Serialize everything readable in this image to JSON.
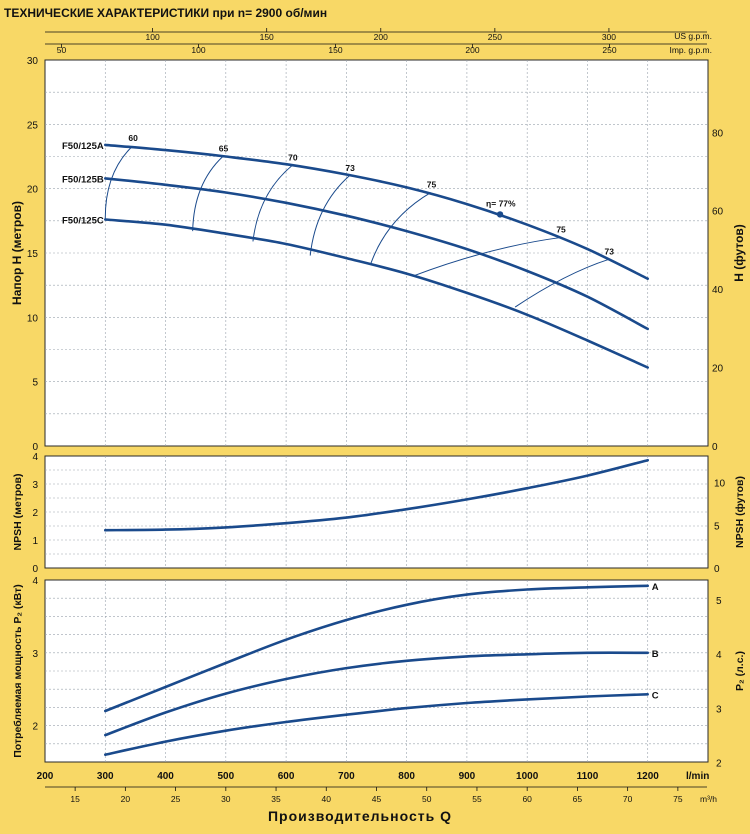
{
  "title": "ТЕХНИЧЕСКИЕ ХАРАКТЕРИСТИКИ при n= 2900 об/мин",
  "top_axes": {
    "us_gpm": {
      "unit": "US g.p.m.",
      "ticks": [
        100,
        150,
        200,
        250,
        300
      ]
    },
    "imp_gpm": {
      "unit": "Imp. g.p.m.",
      "ticks": [
        50,
        100,
        150,
        200,
        250
      ]
    }
  },
  "bottom_axes": {
    "lmin": {
      "unit": "l/min",
      "ticks": [
        200,
        300,
        400,
        500,
        600,
        700,
        800,
        900,
        1000,
        1100,
        1200
      ]
    },
    "m3h": {
      "unit": "m³/h",
      "ticks": [
        15,
        20,
        25,
        30,
        35,
        40,
        45,
        50,
        55,
        60,
        65,
        70,
        75
      ]
    },
    "xlabel": "Производительность  Q"
  },
  "colors": {
    "background": "#f8d866",
    "curve": "#1a4a8c",
    "grid": "#9aa3ad"
  },
  "chart_data": [
    {
      "type": "line",
      "name_panel": "head",
      "xlabel": "Производительность Q (l/min)",
      "ylabel_left": "Напор  H   (метров)",
      "ylabel_right": "H    (футов)",
      "xlim": [
        200,
        1300
      ],
      "ylim": [
        0,
        30
      ],
      "yticks_left": [
        0,
        5,
        10,
        15,
        20,
        25,
        30
      ],
      "yticks_right": [
        0,
        20,
        40,
        60,
        80
      ],
      "grid": true,
      "series": [
        {
          "name": "F50/125A",
          "x": [
            300,
            400,
            500,
            600,
            700,
            800,
            900,
            1000,
            1100,
            1200
          ],
          "y": [
            23.4,
            23.0,
            22.5,
            21.9,
            21.1,
            20.1,
            18.8,
            17.2,
            15.3,
            13.0
          ]
        },
        {
          "name": "F50/125B",
          "x": [
            300,
            400,
            500,
            600,
            700,
            800,
            900,
            1000,
            1100,
            1200
          ],
          "y": [
            20.8,
            20.3,
            19.7,
            18.9,
            17.9,
            16.7,
            15.3,
            13.6,
            11.6,
            9.1
          ]
        },
        {
          "name": "F50/125C",
          "x": [
            300,
            400,
            500,
            600,
            700,
            800,
            900,
            1000,
            1100,
            1200
          ],
          "y": [
            17.6,
            17.2,
            16.5,
            15.7,
            14.6,
            13.4,
            11.9,
            10.2,
            8.2,
            6.1
          ]
        }
      ],
      "efficiency": [
        {
          "label": "60",
          "points": [
            [
              345,
              23.3
            ],
            [
              300,
              17.6
            ]
          ]
        },
        {
          "label": "65",
          "points": [
            [
              495,
              22.5
            ],
            [
              445,
              16.7
            ]
          ]
        },
        {
          "label": "70",
          "points": [
            [
              610,
              21.8
            ],
            [
              545,
              15.9
            ]
          ]
        },
        {
          "label": "73",
          "points": [
            [
              705,
              21.0
            ],
            [
              640,
              14.8
            ]
          ]
        },
        {
          "label": "75",
          "points": [
            [
              840,
              19.7
            ],
            [
              740,
              14.1
            ]
          ]
        },
        {
          "label": "η= 77%",
          "points": [
            [
              955,
              18.0
            ]
          ]
        },
        {
          "label": "75",
          "points": [
            [
              1055,
              16.2
            ],
            [
              810,
              13.2
            ]
          ]
        },
        {
          "label": "73",
          "points": [
            [
              1135,
              14.5
            ],
            [
              980,
              10.8
            ]
          ]
        }
      ]
    },
    {
      "type": "line",
      "name_panel": "npsh",
      "ylabel_left": "NPSH   (метров)",
      "ylabel_right": "NPSH   (футов)",
      "xlim": [
        200,
        1300
      ],
      "ylim": [
        0,
        4
      ],
      "yticks_left": [
        0,
        1,
        2,
        3,
        4
      ],
      "yticks_right": [
        0,
        5,
        10
      ],
      "grid": true,
      "series": [
        {
          "name": "",
          "x": [
            300,
            400,
            500,
            600,
            700,
            800,
            900,
            1000,
            1100,
            1200
          ],
          "y": [
            1.35,
            1.37,
            1.45,
            1.6,
            1.8,
            2.1,
            2.45,
            2.85,
            3.3,
            3.85
          ]
        }
      ]
    },
    {
      "type": "line",
      "name_panel": "power",
      "ylabel_left": "Потребляемая мощность  P₂  (кВт)",
      "ylabel_right": "P₂   (л.с.)",
      "xlim": [
        200,
        1300
      ],
      "ylim": [
        1.5,
        4
      ],
      "yticks_left": [
        2,
        3,
        4
      ],
      "yticks_right": [
        2,
        3,
        4,
        5
      ],
      "grid": true,
      "series": [
        {
          "name": "A",
          "x": [
            300,
            400,
            500,
            600,
            700,
            800,
            900,
            1000,
            1100,
            1200
          ],
          "y": [
            2.2,
            2.53,
            2.86,
            3.18,
            3.45,
            3.66,
            3.8,
            3.87,
            3.9,
            3.92
          ]
        },
        {
          "name": "B",
          "x": [
            300,
            400,
            500,
            600,
            700,
            800,
            900,
            1000,
            1100,
            1200
          ],
          "y": [
            1.87,
            2.18,
            2.44,
            2.64,
            2.79,
            2.89,
            2.95,
            2.98,
            3.0,
            3.0
          ]
        },
        {
          "name": "C",
          "x": [
            300,
            400,
            500,
            600,
            700,
            800,
            900,
            1000,
            1100,
            1200
          ],
          "y": [
            1.6,
            1.78,
            1.93,
            2.05,
            2.15,
            2.24,
            2.31,
            2.36,
            2.4,
            2.43
          ]
        }
      ]
    }
  ]
}
